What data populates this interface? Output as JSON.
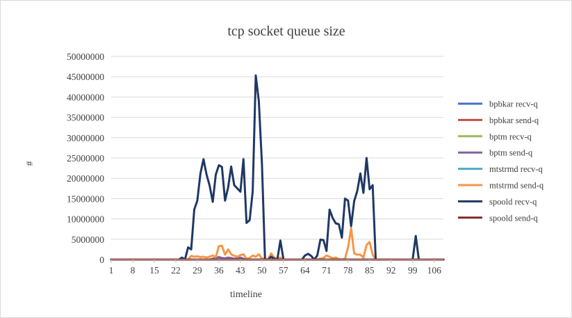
{
  "chart_data": {
    "type": "line",
    "title": "tcp socket queue size",
    "xlabel": "timeline",
    "ylabel": "#",
    "x_tick_labels": [
      "1",
      "8",
      "15",
      "22",
      "29",
      "36",
      "43",
      "50",
      "57",
      "64",
      "71",
      "78",
      "85",
      "92",
      "99",
      "106"
    ],
    "y_tick_labels": [
      "0",
      "5000000",
      "10000000",
      "15000000",
      "20000000",
      "25000000",
      "30000000",
      "35000000",
      "40000000",
      "45000000",
      "50000000"
    ],
    "x_range": [
      1,
      109
    ],
    "ylim": [
      0,
      50000000
    ],
    "grid": "horizontal",
    "legend_position": "right",
    "series": [
      {
        "name": "bpbkar recv-q",
        "color": "#4472c4",
        "points": [
          [
            1,
            0
          ],
          [
            109,
            0
          ]
        ]
      },
      {
        "name": "bpbkar send-q",
        "color": "#c0504d",
        "points": [
          [
            1,
            0
          ],
          [
            109,
            0
          ]
        ]
      },
      {
        "name": "bptm recv-q",
        "color": "#9bbb59",
        "points": [
          [
            1,
            0
          ],
          [
            109,
            0
          ]
        ]
      },
      {
        "name": "bptm send-q",
        "color": "#8064a2",
        "points": [
          [
            1,
            0
          ],
          [
            33,
            0
          ],
          [
            34,
            200000
          ],
          [
            35,
            400000
          ],
          [
            36,
            600000
          ],
          [
            37,
            400000
          ],
          [
            38,
            300000
          ],
          [
            39,
            500000
          ],
          [
            40,
            400000
          ],
          [
            41,
            200000
          ],
          [
            42,
            300000
          ],
          [
            43,
            500000
          ],
          [
            44,
            200000
          ],
          [
            45,
            0
          ],
          [
            109,
            0
          ]
        ]
      },
      {
        "name": "mtstrmd recv-q",
        "color": "#4bacc6",
        "points": [
          [
            1,
            0
          ],
          [
            109,
            0
          ]
        ]
      },
      {
        "name": "mtstrmd send-q",
        "color": "#f79646",
        "points": [
          [
            1,
            0
          ],
          [
            26,
            0
          ],
          [
            27,
            900000
          ],
          [
            28,
            700000
          ],
          [
            29,
            800000
          ],
          [
            30,
            600000
          ],
          [
            31,
            700000
          ],
          [
            32,
            500000
          ],
          [
            33,
            700000
          ],
          [
            34,
            1000000
          ],
          [
            35,
            600000
          ],
          [
            36,
            3300000
          ],
          [
            37,
            3400000
          ],
          [
            38,
            1200000
          ],
          [
            39,
            2500000
          ],
          [
            40,
            1300000
          ],
          [
            41,
            900000
          ],
          [
            42,
            700000
          ],
          [
            43,
            1100000
          ],
          [
            44,
            1300000
          ],
          [
            45,
            200000
          ],
          [
            46,
            400000
          ],
          [
            47,
            1000000
          ],
          [
            48,
            700000
          ],
          [
            49,
            1300000
          ],
          [
            50,
            200000
          ],
          [
            51,
            300000
          ],
          [
            52,
            0
          ],
          [
            53,
            1500000
          ],
          [
            54,
            500000
          ],
          [
            55,
            200000
          ],
          [
            56,
            500000
          ],
          [
            57,
            0
          ],
          [
            68,
            0
          ],
          [
            69,
            200000
          ],
          [
            70,
            400000
          ],
          [
            71,
            1000000
          ],
          [
            72,
            700000
          ],
          [
            73,
            300000
          ],
          [
            74,
            500000
          ],
          [
            75,
            100000
          ],
          [
            76,
            0
          ],
          [
            77,
            200000
          ],
          [
            78,
            3000000
          ],
          [
            79,
            7700000
          ],
          [
            80,
            1500000
          ],
          [
            81,
            1200000
          ],
          [
            82,
            1200000
          ],
          [
            83,
            500000
          ],
          [
            84,
            3600000
          ],
          [
            85,
            4300000
          ],
          [
            86,
            1200000
          ],
          [
            87,
            0
          ],
          [
            109,
            0
          ]
        ]
      },
      {
        "name": "spoold recv-q",
        "color": "#1f3864",
        "points": [
          [
            1,
            0
          ],
          [
            23,
            0
          ],
          [
            24,
            500000
          ],
          [
            25,
            0
          ],
          [
            26,
            3000000
          ],
          [
            27,
            2500000
          ],
          [
            28,
            12300000
          ],
          [
            29,
            14500000
          ],
          [
            30,
            21200000
          ],
          [
            31,
            24700000
          ],
          [
            32,
            20900000
          ],
          [
            33,
            18200000
          ],
          [
            34,
            14200000
          ],
          [
            35,
            20900000
          ],
          [
            36,
            23200000
          ],
          [
            37,
            22800000
          ],
          [
            38,
            14500000
          ],
          [
            39,
            17700000
          ],
          [
            40,
            22900000
          ],
          [
            41,
            18300000
          ],
          [
            42,
            17500000
          ],
          [
            43,
            16700000
          ],
          [
            44,
            24700000
          ],
          [
            45,
            9000000
          ],
          [
            46,
            9700000
          ],
          [
            47,
            16800000
          ],
          [
            48,
            45300000
          ],
          [
            49,
            39000000
          ],
          [
            50,
            23500000
          ],
          [
            51,
            0
          ],
          [
            52,
            0
          ],
          [
            53,
            700000
          ],
          [
            54,
            200000
          ],
          [
            55,
            0
          ],
          [
            56,
            4700000
          ],
          [
            57,
            0
          ],
          [
            63,
            0
          ],
          [
            64,
            1000000
          ],
          [
            65,
            1400000
          ],
          [
            66,
            900000
          ],
          [
            67,
            0
          ],
          [
            68,
            1000000
          ],
          [
            69,
            4900000
          ],
          [
            70,
            4800000
          ],
          [
            71,
            2100000
          ],
          [
            72,
            12300000
          ],
          [
            73,
            10200000
          ],
          [
            74,
            8900000
          ],
          [
            75,
            8700000
          ],
          [
            76,
            5400000
          ],
          [
            77,
            15000000
          ],
          [
            78,
            14500000
          ],
          [
            79,
            8200000
          ],
          [
            80,
            14400000
          ],
          [
            81,
            16900000
          ],
          [
            82,
            21200000
          ],
          [
            83,
            16400000
          ],
          [
            84,
            25000000
          ],
          [
            85,
            17300000
          ],
          [
            86,
            18300000
          ],
          [
            87,
            0
          ],
          [
            99,
            0
          ],
          [
            100,
            5800000
          ],
          [
            101,
            0
          ],
          [
            109,
            0
          ]
        ]
      },
      {
        "name": "spoold send-q",
        "color": "#7f2a26",
        "points": [
          [
            1,
            0
          ],
          [
            109,
            0
          ]
        ]
      }
    ]
  }
}
